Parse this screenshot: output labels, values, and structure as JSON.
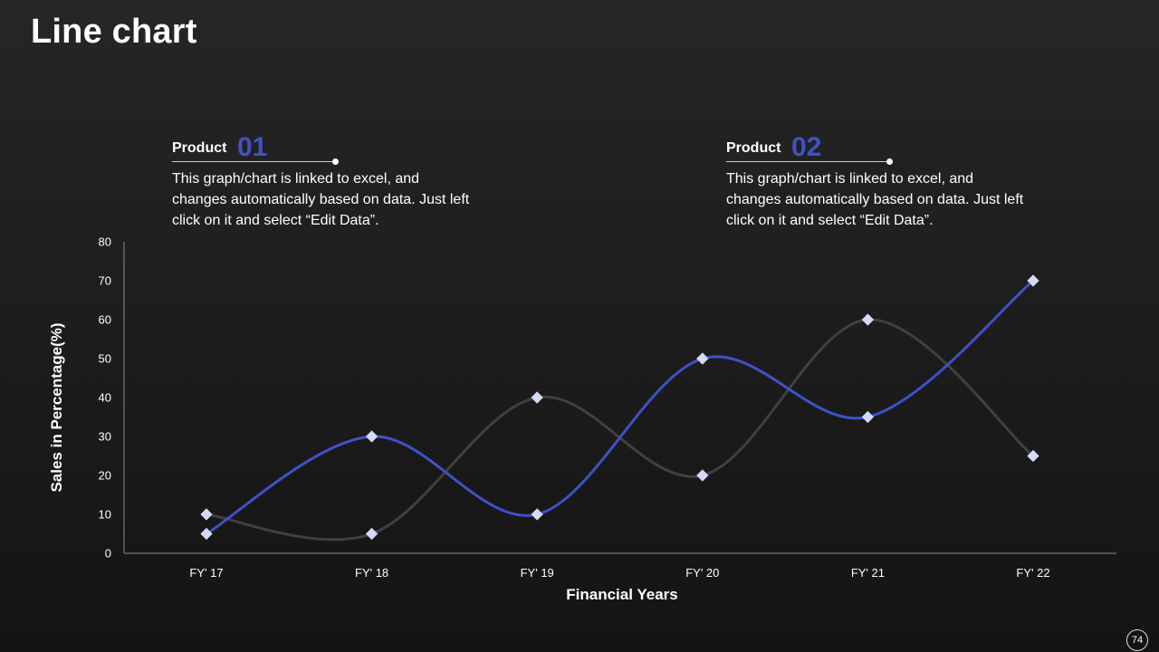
{
  "slide": {
    "title": "Line chart",
    "page_number": "74"
  },
  "callouts": [
    {
      "label": "Product",
      "number": "01",
      "text": "This graph/chart is linked to excel, and changes automatically based on data. Just left click on it and select “Edit Data”."
    },
    {
      "label": "Product",
      "number": "02",
      "text": "This graph/chart is linked to excel, and changes automatically based on data. Just left click on it and select “Edit Data”."
    }
  ],
  "colors": {
    "background": "#1e1e1e",
    "accent": "#4152c4",
    "series_1": "#3f51c8",
    "series_2": "#404040",
    "marker": "#d6dbf5",
    "axis_text": "#ffffff",
    "axis_line": "#8a8a8a"
  },
  "chart_data": {
    "type": "line",
    "smooth": true,
    "categories": [
      "FY' 17",
      "FY' 18",
      "FY' 19",
      "FY' 20",
      "FY' 21",
      "FY' 22"
    ],
    "series": [
      {
        "values": [
          5,
          30,
          10,
          50,
          35,
          70
        ]
      },
      {
        "values": [
          10,
          5,
          40,
          20,
          60,
          25
        ]
      }
    ],
    "xlabel": "Financial Years",
    "ylabel": "Sales in Percentage(%)",
    "ylim": [
      0,
      80
    ],
    "yticks": [
      0,
      10,
      20,
      30,
      40,
      50,
      60,
      70,
      80
    ],
    "grid": false,
    "legend": "none",
    "markers": "diamond"
  }
}
